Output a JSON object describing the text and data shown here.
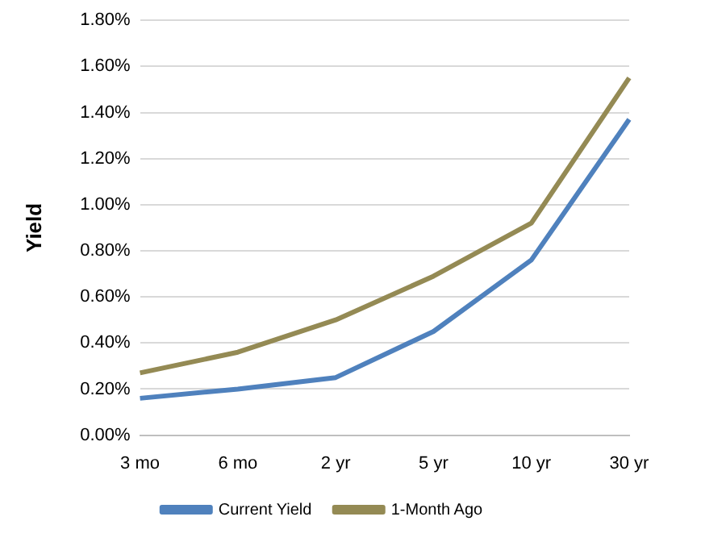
{
  "chart_data": {
    "type": "line",
    "ylabel": "Yield",
    "categories": [
      "3 mo",
      "6 mo",
      "2 yr",
      "5 yr",
      "10 yr",
      "30 yr"
    ],
    "series": [
      {
        "name": "Current Yield",
        "color": "#4f81bd",
        "values": [
          0.16,
          0.2,
          0.25,
          0.45,
          0.76,
          1.37
        ]
      },
      {
        "name": "1-Month Ago",
        "color": "#948a54",
        "values": [
          0.27,
          0.36,
          0.5,
          0.69,
          0.92,
          1.55
        ]
      }
    ],
    "ylim": [
      0,
      1.8
    ],
    "yticks": [
      {
        "value": 0,
        "label": "0.00%"
      },
      {
        "value": 0.2,
        "label": "0.20%"
      },
      {
        "value": 0.4,
        "label": "0.40%"
      },
      {
        "value": 0.6,
        "label": "0.60%"
      },
      {
        "value": 0.8,
        "label": "0.80%"
      },
      {
        "value": 1.0,
        "label": "1.00%"
      },
      {
        "value": 1.2,
        "label": "1.20%"
      },
      {
        "value": 1.4,
        "label": "1.40%"
      },
      {
        "value": 1.6,
        "label": "1.60%"
      },
      {
        "value": 1.8,
        "label": "1.80%"
      }
    ],
    "grid": "y",
    "legend": "bottom",
    "marker": "none",
    "line_style": "solid"
  }
}
